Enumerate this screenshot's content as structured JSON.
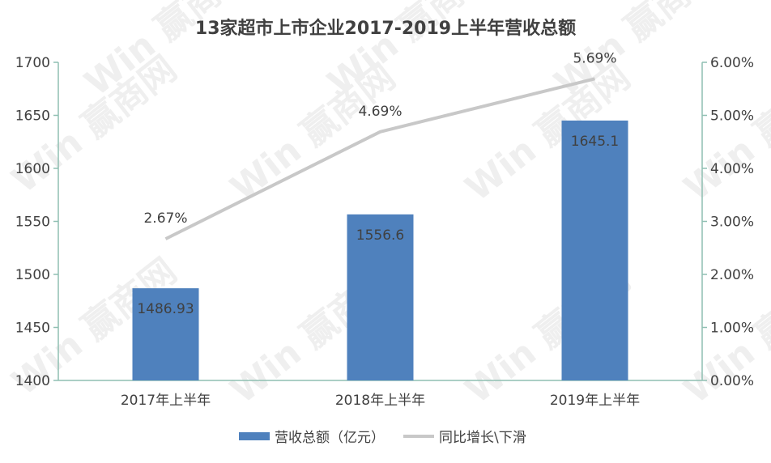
{
  "chart_data": {
    "type": "bar",
    "title": "13家超市上市企业2017-2019上半年营收总额",
    "categories": [
      "2017年上半年",
      "2018年上半年",
      "2019年上半年"
    ],
    "series": [
      {
        "name": "营收总额（亿元）",
        "type": "bar",
        "axis": "left",
        "values": [
          1486.93,
          1556.6,
          1645.1
        ],
        "labels": [
          "1486.93",
          "1556.6",
          "1645.1"
        ],
        "color": "#4f81bd"
      },
      {
        "name": "同比增长\\下滑",
        "type": "line",
        "axis": "right",
        "values": [
          2.67,
          4.69,
          5.69
        ],
        "labels": [
          "2.67%",
          "4.69%",
          "5.69%"
        ],
        "color": "#c8c8c8"
      }
    ],
    "ylim": [
      1400,
      1700
    ],
    "yticks": [
      "1400",
      "1450",
      "1500",
      "1550",
      "1600",
      "1650",
      "1700"
    ],
    "y2lim": [
      0,
      6
    ],
    "y2ticks": [
      "0.00%",
      "1.00%",
      "2.00%",
      "3.00%",
      "4.00%",
      "5.00%",
      "6.00%"
    ],
    "grid": false,
    "legend_position": "bottom",
    "axis_color": "#8fbfb2"
  }
}
